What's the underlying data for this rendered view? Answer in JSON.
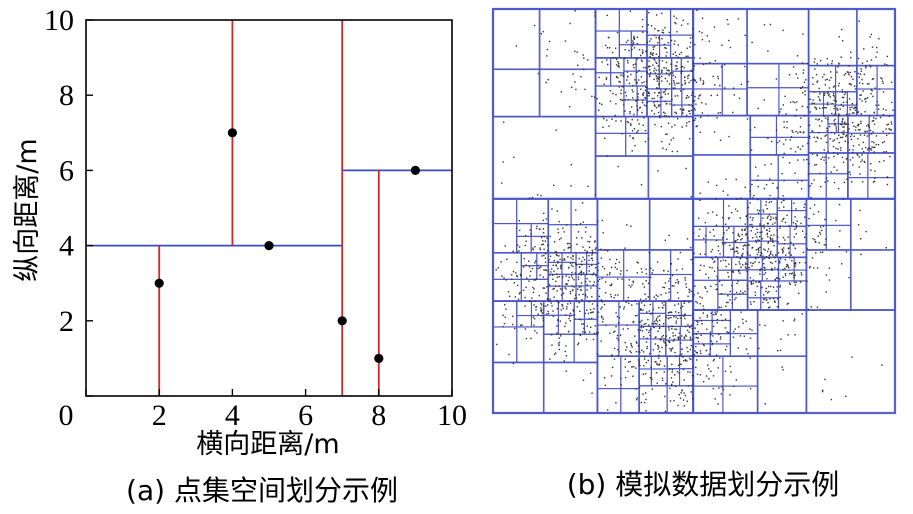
{
  "chart_data": [
    {
      "type": "scatter",
      "caption": "(a) 点集空间划分示例",
      "xlabel": "横向距离/m",
      "ylabel": "纵向距离/m",
      "xlim": [
        0,
        10
      ],
      "ylim": [
        0,
        10
      ],
      "x_ticks": [
        "0",
        "2",
        "4",
        "6",
        "8",
        "10"
      ],
      "y_ticks": [
        "2",
        "4",
        "6",
        "8",
        "10"
      ],
      "points": [
        {
          "x": 2,
          "y": 3
        },
        {
          "x": 4,
          "y": 7
        },
        {
          "x": 5,
          "y": 4
        },
        {
          "x": 7,
          "y": 2
        },
        {
          "x": 8,
          "y": 1
        },
        {
          "x": 9,
          "y": 6
        }
      ],
      "split_lines": [
        {
          "orientation": "vertical",
          "x": 7,
          "y0": 0,
          "y1": 10,
          "color": "#d62728"
        },
        {
          "orientation": "horizontal",
          "y": 4,
          "x0": 0,
          "x1": 7,
          "color": "#3b4cc0"
        },
        {
          "orientation": "horizontal",
          "y": 6,
          "x0": 7,
          "x1": 10,
          "color": "#3b4cc0"
        },
        {
          "orientation": "vertical",
          "x": 4,
          "y0": 4,
          "y1": 10,
          "color": "#d62728"
        },
        {
          "orientation": "vertical",
          "x": 2,
          "y0": 0,
          "y1": 4,
          "color": "#d62728"
        },
        {
          "orientation": "vertical",
          "x": 8,
          "y0": 0,
          "y1": 6,
          "color": "#d62728"
        }
      ],
      "grid": false,
      "legend": "none"
    },
    {
      "type": "scatter",
      "caption": "(b) 模拟数据划分示例",
      "description_colors": {
        "box": "#4a56c8",
        "point": "#333333"
      },
      "clusters": [
        {
          "cx": 0.41,
          "cy": 0.83,
          "spread": 0.085,
          "count": 520
        },
        {
          "cx": 0.88,
          "cy": 0.73,
          "spread": 0.085,
          "count": 520
        },
        {
          "cx": 0.67,
          "cy": 0.4,
          "spread": 0.08,
          "count": 520
        },
        {
          "cx": 0.17,
          "cy": 0.32,
          "spread": 0.085,
          "count": 480
        },
        {
          "cx": 0.44,
          "cy": 0.19,
          "spread": 0.085,
          "count": 520
        }
      ],
      "noise_points": 140,
      "xlim": [
        0,
        1
      ],
      "ylim": [
        0,
        1
      ],
      "grid": false,
      "legend": "none"
    }
  ]
}
